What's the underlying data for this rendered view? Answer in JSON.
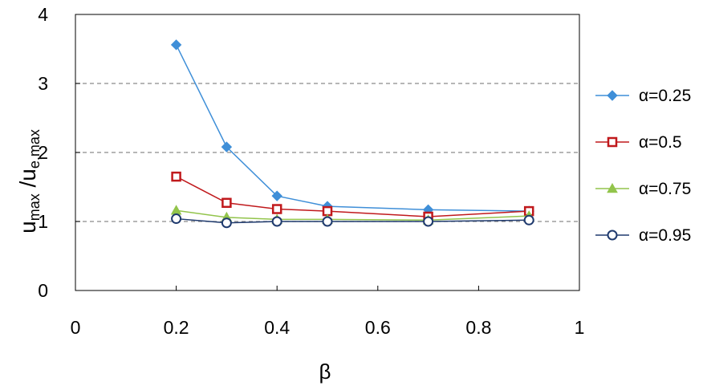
{
  "chart_data": {
    "type": "line",
    "xlabel": "β",
    "ylabel": {
      "main": "u",
      "main_sub": "max",
      "sep": " /u",
      "sep_sub": "e,max"
    },
    "xlim": [
      0,
      1
    ],
    "ylim": [
      0,
      4
    ],
    "xticks": [
      "0",
      "0.2",
      "0.4",
      "0.6",
      "0.8",
      "1"
    ],
    "yticks": [
      "0",
      "1",
      "2",
      "3",
      "4"
    ],
    "grid": {
      "y": "dashed",
      "x": false
    },
    "legend_position": "right",
    "series": [
      {
        "name": "α=0.25",
        "color": "#3f8fd8",
        "marker": "diamond",
        "x": [
          0.2,
          0.3,
          0.4,
          0.5,
          0.7,
          0.9
        ],
        "y": [
          3.56,
          2.08,
          1.37,
          1.22,
          1.17,
          1.15
        ]
      },
      {
        "name": "α=0.5",
        "color": "#c0191c",
        "marker": "square-open",
        "x": [
          0.2,
          0.3,
          0.4,
          0.5,
          0.7,
          0.9
        ],
        "y": [
          1.65,
          1.27,
          1.18,
          1.15,
          1.07,
          1.15
        ]
      },
      {
        "name": "α=0.75",
        "color": "#92c44b",
        "marker": "triangle",
        "x": [
          0.2,
          0.3,
          0.4,
          0.5,
          0.7,
          0.9
        ],
        "y": [
          1.16,
          1.06,
          1.03,
          1.03,
          1.02,
          1.08
        ]
      },
      {
        "name": "α=0.95",
        "color": "#1f3a6e",
        "marker": "circle-open",
        "x": [
          0.2,
          0.3,
          0.4,
          0.5,
          0.7,
          0.9
        ],
        "y": [
          1.04,
          0.98,
          1.0,
          1.0,
          1.0,
          1.02
        ]
      }
    ]
  }
}
